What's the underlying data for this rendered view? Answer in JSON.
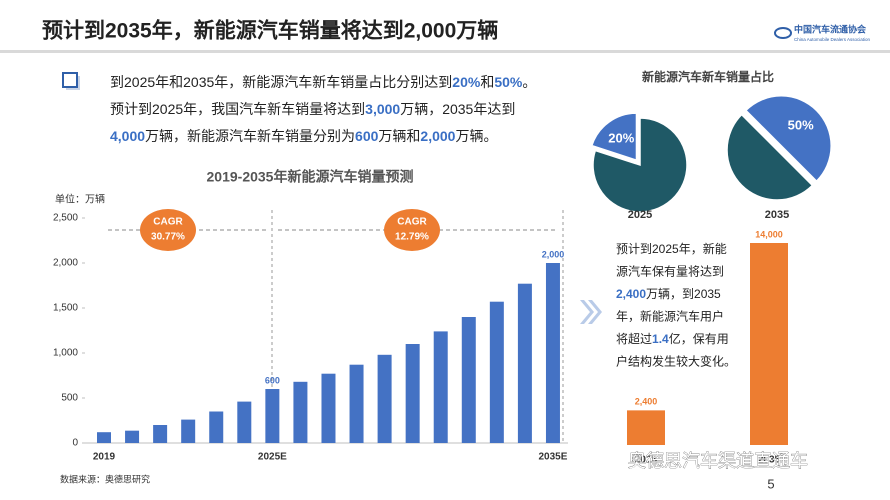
{
  "header": {
    "title": "预计到2035年，新能源汽车销量将达到2,000万辆",
    "logo": "中国汽车流通协会",
    "logo_en": "China Automobile Dealers Association"
  },
  "highlight_color": "#3a6fc4",
  "bullet": {
    "lines": [
      [
        {
          "text": "到2025年和2035年，新能源汽车新车销量占比分别达到"
        },
        {
          "text": "20%",
          "highlight": true
        },
        {
          "text": "和"
        },
        {
          "text": "50%",
          "highlight": true
        },
        {
          "text": "。"
        }
      ],
      [
        {
          "text": "预计到2025年，我国汽车新车销量将达到"
        },
        {
          "text": "3,000",
          "highlight": true
        },
        {
          "text": "万辆，2035年达到"
        }
      ],
      [
        {
          "text": "4,000",
          "highlight": true
        },
        {
          "text": "万辆，新能源汽车新车销量分别为"
        },
        {
          "text": "600",
          "highlight": true
        },
        {
          "text": "万辆和"
        },
        {
          "text": "2,000",
          "highlight": true
        },
        {
          "text": "万辆。"
        }
      ]
    ]
  },
  "chart_data": [
    {
      "type": "bar",
      "title": "2019-2035年新能源汽车销量预测",
      "unit_label": "单位：万辆",
      "categories": [
        "2019",
        null,
        null,
        null,
        null,
        null,
        "2025E",
        null,
        null,
        null,
        null,
        null,
        null,
        null,
        null,
        null,
        "2035E"
      ],
      "values": [
        120,
        137,
        200,
        260,
        350,
        460,
        600,
        680,
        770,
        870,
        980,
        1100,
        1240,
        1400,
        1570,
        1770,
        2000
      ],
      "value_labels": [
        null,
        null,
        null,
        null,
        null,
        null,
        "600",
        null,
        null,
        null,
        null,
        null,
        null,
        null,
        null,
        null,
        "2,000"
      ],
      "color": "#4472c4",
      "ylim": [
        0,
        2500
      ],
      "yticks": [
        0,
        500,
        {
          "value": 1000,
          "label": "1,000"
        },
        {
          "value": 1500,
          "label": "1,500"
        },
        {
          "value": 2000,
          "label": "2,000"
        },
        {
          "value": 2500,
          "label": "2,500"
        }
      ],
      "annotations": [
        {
          "text": "CAGR",
          "subtext": "30.77%"
        },
        {
          "text": "CAGR",
          "subtext": "12.79%"
        }
      ],
      "annotation_color": "#ed7d31"
    },
    {
      "type": "pie",
      "title": "新能源汽车新车销量占比",
      "label": "2025",
      "values": [
        20,
        80
      ],
      "value_labels": [
        "20%",
        null
      ],
      "colors": [
        "#4472c4",
        "#1f5966"
      ]
    },
    {
      "type": "pie",
      "label": "2035",
      "values": [
        50,
        50
      ],
      "value_labels": [
        "50%",
        null
      ],
      "colors": [
        "#4472c4",
        "#1f5966"
      ]
    },
    {
      "type": "bar",
      "categories": [
        "2025",
        "2035"
      ],
      "values": [
        2400,
        14000
      ],
      "value_labels": [
        "2,400",
        "14,000"
      ],
      "color": "#ed7d31",
      "ylim": [
        0,
        14000
      ]
    }
  ],
  "note": {
    "lines": [
      [
        {
          "text": "预计到2025年，新能"
        }
      ],
      [
        {
          "text": "源汽车保有量将达到"
        }
      ],
      [
        {
          "text": "2,400",
          "highlight": true
        },
        {
          "text": "万辆，到2035"
        }
      ],
      [
        {
          "text": "年，新能源汽车用户"
        }
      ],
      [
        {
          "text": "将超过"
        },
        {
          "text": "1.4",
          "highlight": true
        },
        {
          "text": "亿，保有用"
        }
      ],
      [
        {
          "text": "户结构发生较大变化。"
        }
      ]
    ]
  },
  "source": "数据来源：奥德思研究",
  "watermark": "奥德思汽车渠道直通车",
  "page_number": "5"
}
